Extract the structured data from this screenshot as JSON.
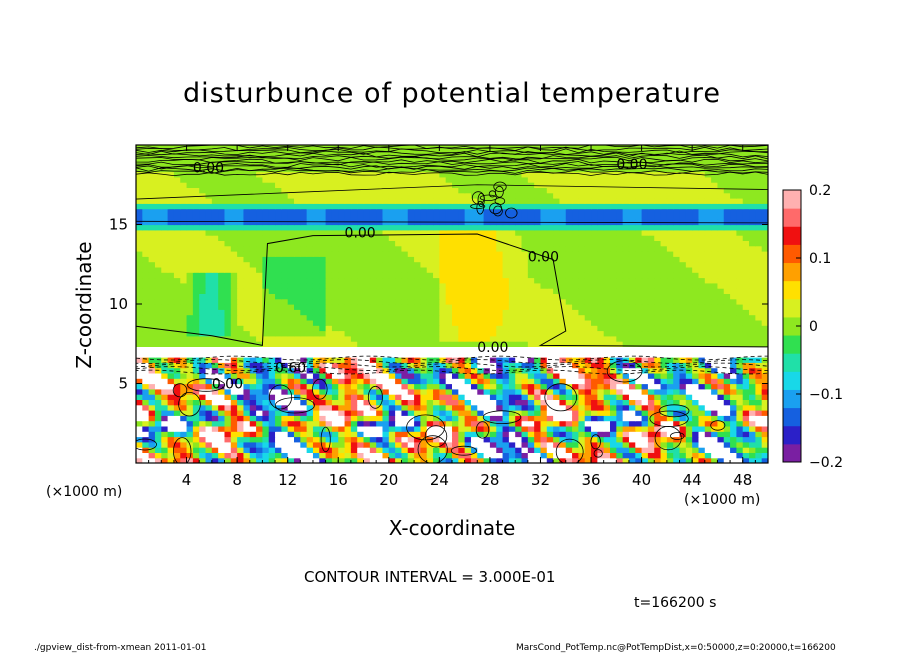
{
  "chart_data": {
    "type": "heatmap",
    "title": "disturbunce of potential temperature",
    "xlabel": "X-coordinate",
    "ylabel": "Z-coordinate",
    "x_unit": "(×1000 m)",
    "xlim": [
      0,
      50
    ],
    "ylim": [
      0,
      20
    ],
    "x_ticks": [
      "4",
      "8",
      "12",
      "16",
      "20",
      "24",
      "28",
      "32",
      "36",
      "40",
      "44",
      "48"
    ],
    "y_ticks": [
      "5",
      "10",
      "15"
    ],
    "colorbar": {
      "range": [
        -0.2,
        0.2
      ],
      "ticks": [
        "0.2",
        "0.1",
        "0",
        "−0.1",
        "−0.2"
      ],
      "colors": [
        "#7a1fa2",
        "#2b20c8",
        "#1560e0",
        "#1aa0f0",
        "#18d8e8",
        "#20e0a8",
        "#30e050",
        "#8ee820",
        "#d8f020",
        "#ffe000",
        "#ffa000",
        "#ff5a00",
        "#f01010",
        "#ff6a6a",
        "#ffb0b0"
      ]
    },
    "contour_labels": [
      "0.00",
      "0.00",
      "0.00",
      "0.00",
      "0.00",
      "0.60",
      "0.00"
    ],
    "layers": [
      {
        "z": [
          0,
          7
        ],
        "description": "turbulent lower layer",
        "value_range": [
          -0.2,
          0.2
        ]
      },
      {
        "z": [
          7,
          15
        ],
        "value": 0.02
      },
      {
        "z": [
          15,
          16
        ],
        "value": -0.12
      },
      {
        "z": [
          16,
          18
        ],
        "value": 0.01
      },
      {
        "z": [
          18,
          20
        ],
        "description": "stratified top layer with dense contours"
      }
    ]
  },
  "contour_interval": "CONTOUR INTERVAL = 3.000E-01",
  "time": "t=166200 s",
  "footer": {
    "left": "./gpview_dist-from-xmean   2011-01-01",
    "right": "MarsCond_PotTemp.nc@PotTempDist,x=0:50000,z=0:20000,t=166200"
  }
}
